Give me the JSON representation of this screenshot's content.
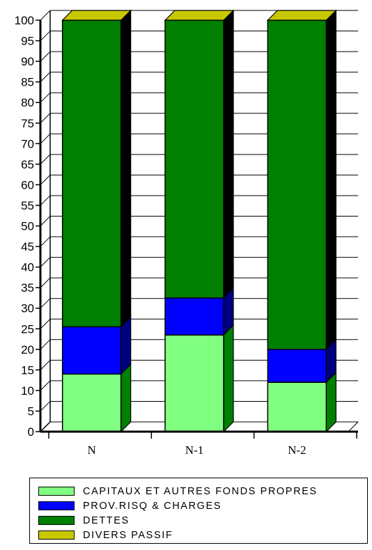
{
  "chart_data": {
    "type": "bar",
    "stacked": true,
    "three_d": true,
    "categories": [
      "N",
      "N-1",
      "N-2"
    ],
    "series": [
      {
        "name": "CAPITAUX ET AUTRES FONDS PROPRES",
        "color": "#80ff80",
        "side_color": "#008000",
        "values": [
          14,
          23.5,
          12
        ]
      },
      {
        "name": "PROV.RISQ & CHARGES",
        "color": "#0000ff",
        "side_color": "#000080",
        "values": [
          11.5,
          9,
          8
        ]
      },
      {
        "name": "DETTES",
        "color": "#008000",
        "side_color": "#000000",
        "values": [
          74.5,
          67.5,
          80
        ]
      },
      {
        "name": "DIVERS PASSIF",
        "color": "#c8c800",
        "side_color": "#808000",
        "values": [
          0,
          0,
          0
        ]
      }
    ],
    "ylim": [
      0,
      100
    ],
    "yticks": [
      0,
      5,
      10,
      15,
      20,
      25,
      30,
      35,
      40,
      45,
      50,
      55,
      60,
      65,
      70,
      75,
      80,
      85,
      90,
      95,
      100
    ],
    "grid": true,
    "legend_position": "bottom",
    "title": "",
    "xlabel": "",
    "ylabel": ""
  }
}
